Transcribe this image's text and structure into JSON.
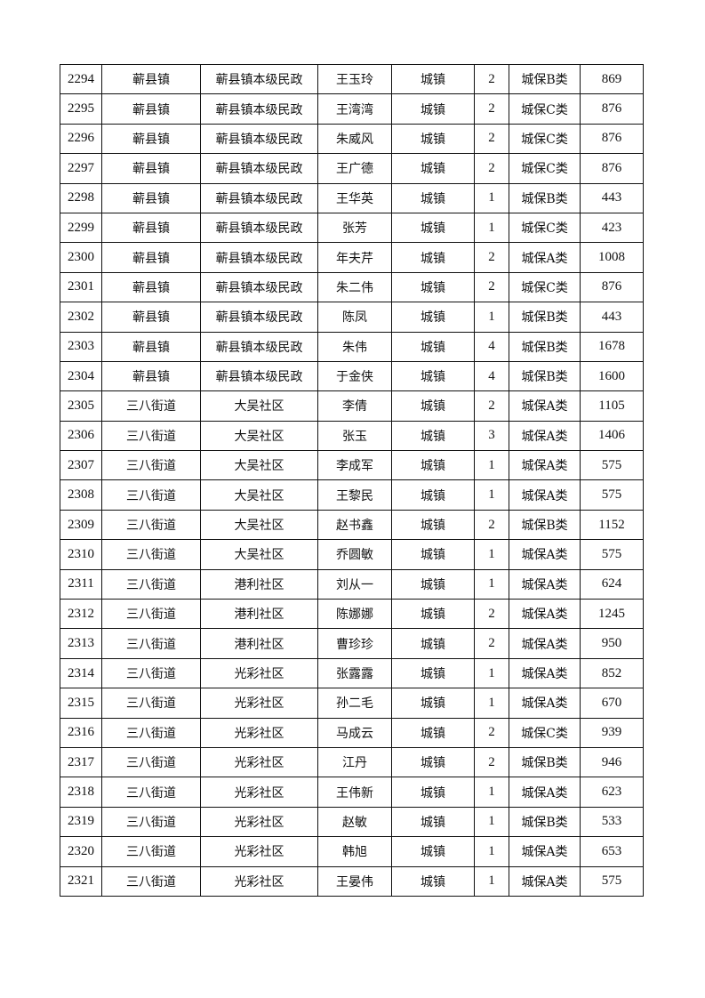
{
  "table": {
    "rows": [
      [
        "2294",
        "蕲县镇",
        "蕲县镇本级民政",
        "王玉玲",
        "城镇",
        "2",
        "城保B类",
        "869"
      ],
      [
        "2295",
        "蕲县镇",
        "蕲县镇本级民政",
        "王湾湾",
        "城镇",
        "2",
        "城保C类",
        "876"
      ],
      [
        "2296",
        "蕲县镇",
        "蕲县镇本级民政",
        "朱威风",
        "城镇",
        "2",
        "城保C类",
        "876"
      ],
      [
        "2297",
        "蕲县镇",
        "蕲县镇本级民政",
        "王广德",
        "城镇",
        "2",
        "城保C类",
        "876"
      ],
      [
        "2298",
        "蕲县镇",
        "蕲县镇本级民政",
        "王华英",
        "城镇",
        "1",
        "城保B类",
        "443"
      ],
      [
        "2299",
        "蕲县镇",
        "蕲县镇本级民政",
        "张芳",
        "城镇",
        "1",
        "城保C类",
        "423"
      ],
      [
        "2300",
        "蕲县镇",
        "蕲县镇本级民政",
        "年夫芹",
        "城镇",
        "2",
        "城保A类",
        "1008"
      ],
      [
        "2301",
        "蕲县镇",
        "蕲县镇本级民政",
        "朱二伟",
        "城镇",
        "2",
        "城保C类",
        "876"
      ],
      [
        "2302",
        "蕲县镇",
        "蕲县镇本级民政",
        "陈凤",
        "城镇",
        "1",
        "城保B类",
        "443"
      ],
      [
        "2303",
        "蕲县镇",
        "蕲县镇本级民政",
        "朱伟",
        "城镇",
        "4",
        "城保B类",
        "1678"
      ],
      [
        "2304",
        "蕲县镇",
        "蕲县镇本级民政",
        "于金侠",
        "城镇",
        "4",
        "城保B类",
        "1600"
      ],
      [
        "2305",
        "三八街道",
        "大吴社区",
        "李倩",
        "城镇",
        "2",
        "城保A类",
        "1105"
      ],
      [
        "2306",
        "三八街道",
        "大吴社区",
        "张玉",
        "城镇",
        "3",
        "城保A类",
        "1406"
      ],
      [
        "2307",
        "三八街道",
        "大吴社区",
        "李成军",
        "城镇",
        "1",
        "城保A类",
        "575"
      ],
      [
        "2308",
        "三八街道",
        "大吴社区",
        "王黎民",
        "城镇",
        "1",
        "城保A类",
        "575"
      ],
      [
        "2309",
        "三八街道",
        "大吴社区",
        "赵书鑫",
        "城镇",
        "2",
        "城保B类",
        "1152"
      ],
      [
        "2310",
        "三八街道",
        "大吴社区",
        "乔圆敏",
        "城镇",
        "1",
        "城保A类",
        "575"
      ],
      [
        "2311",
        "三八街道",
        "港利社区",
        "刘从一",
        "城镇",
        "1",
        "城保A类",
        "624"
      ],
      [
        "2312",
        "三八街道",
        "港利社区",
        "陈娜娜",
        "城镇",
        "2",
        "城保A类",
        "1245"
      ],
      [
        "2313",
        "三八街道",
        "港利社区",
        "曹珍珍",
        "城镇",
        "2",
        "城保A类",
        "950"
      ],
      [
        "2314",
        "三八街道",
        "光彩社区",
        "张露露",
        "城镇",
        "1",
        "城保A类",
        "852"
      ],
      [
        "2315",
        "三八街道",
        "光彩社区",
        "孙二毛",
        "城镇",
        "1",
        "城保A类",
        "670"
      ],
      [
        "2316",
        "三八街道",
        "光彩社区",
        "马成云",
        "城镇",
        "2",
        "城保C类",
        "939"
      ],
      [
        "2317",
        "三八街道",
        "光彩社区",
        "江丹",
        "城镇",
        "2",
        "城保B类",
        "946"
      ],
      [
        "2318",
        "三八街道",
        "光彩社区",
        "王伟新",
        "城镇",
        "1",
        "城保A类",
        "623"
      ],
      [
        "2319",
        "三八街道",
        "光彩社区",
        "赵敏",
        "城镇",
        "1",
        "城保B类",
        "533"
      ],
      [
        "2320",
        "三八街道",
        "光彩社区",
        "韩旭",
        "城镇",
        "1",
        "城保A类",
        "653"
      ],
      [
        "2321",
        "三八街道",
        "光彩社区",
        "王晏伟",
        "城镇",
        "1",
        "城保A类",
        "575"
      ]
    ]
  }
}
